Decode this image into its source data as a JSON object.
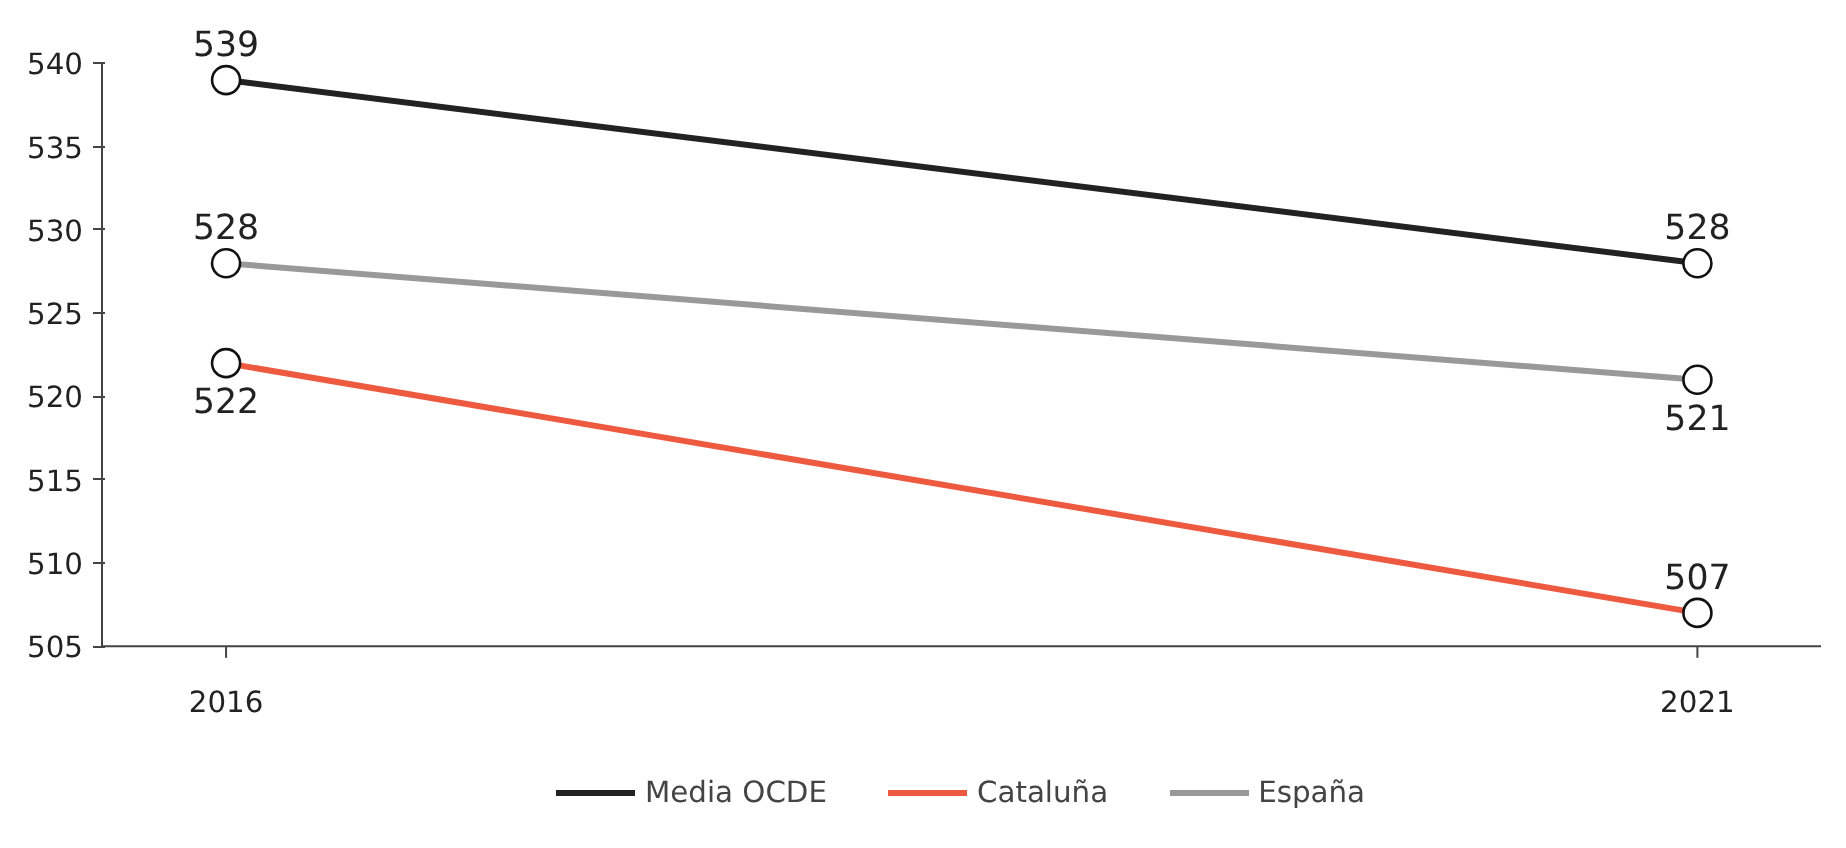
{
  "chart_data": {
    "type": "line",
    "categories": [
      "2016",
      "2021"
    ],
    "ylim": [
      505,
      540
    ],
    "yticks": [
      505,
      510,
      515,
      520,
      525,
      530,
      535,
      540
    ],
    "series": [
      {
        "name": "Media OCDE",
        "color": "#222222",
        "values": [
          539,
          528
        ]
      },
      {
        "name": "Cataluña",
        "color": "#ee5a40",
        "values": [
          522,
          507
        ]
      },
      {
        "name": "España",
        "color": "#999999",
        "values": [
          528,
          521
        ]
      }
    ],
    "data_labels": true,
    "marker": "circle",
    "legend": "bottom",
    "grid": false,
    "line_style": "solid"
  }
}
